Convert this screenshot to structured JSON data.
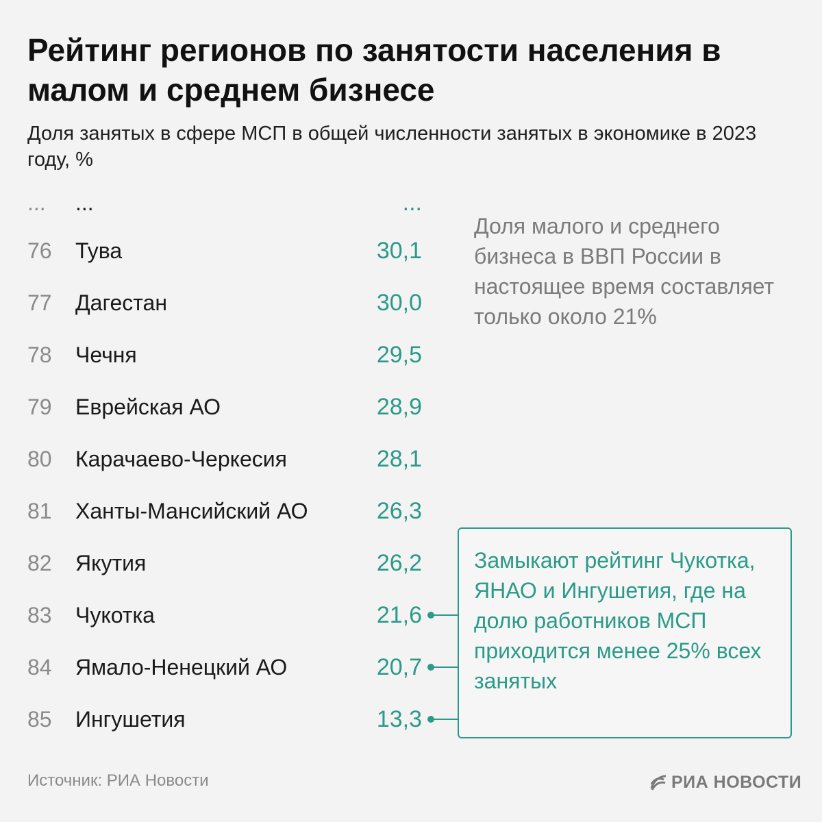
{
  "title": "Рейтинг регионов по занятости населения в малом и среднем бизнесе",
  "subtitle": "Доля занятых в сфере МСП в общей численности занятых в экономике в 2023 году, %",
  "ellipsis": {
    "rank": "...",
    "region": "...",
    "value": "..."
  },
  "chart_data": {
    "type": "table",
    "columns": [
      "rank",
      "region",
      "value"
    ],
    "rows": [
      {
        "rank": "76",
        "region": "Тува",
        "value": "30,1",
        "highlight": false
      },
      {
        "rank": "77",
        "region": "Дагестан",
        "value": "30,0",
        "highlight": false
      },
      {
        "rank": "78",
        "region": "Чечня",
        "value": "29,5",
        "highlight": false
      },
      {
        "rank": "79",
        "region": "Еврейская АО",
        "value": "28,9",
        "highlight": false
      },
      {
        "rank": "80",
        "region": "Карачаево-Черкесия",
        "value": "28,1",
        "highlight": false
      },
      {
        "rank": "81",
        "region": "Ханты-Мансийский АО",
        "value": "26,3",
        "highlight": false
      },
      {
        "rank": "82",
        "region": "Якутия",
        "value": "26,2",
        "highlight": false
      },
      {
        "rank": "83",
        "region": "Чукотка",
        "value": "21,6",
        "highlight": true
      },
      {
        "rank": "84",
        "region": "Ямало-Ненецкий АО",
        "value": "20,7",
        "highlight": true
      },
      {
        "rank": "85",
        "region": "Ингушетия",
        "value": "13,3",
        "highlight": true
      }
    ]
  },
  "notes": {
    "gdp": "Доля малого и среднего бизнеса в ВВП России в настоящее время составляет только около 21%",
    "callout": "Замыкают рейтинг Чукотка, ЯНАО и Ингушетия, где на долю работников МСП приходится менее 25% всех занятых"
  },
  "footer": {
    "source": "Источник: РИА Новости",
    "logo": "РИА НОВОСТИ"
  },
  "colors": {
    "accent": "#2b9a88",
    "background": "#f3f3f3",
    "rank": "#8a8a8a",
    "note": "#7b7b7b"
  }
}
